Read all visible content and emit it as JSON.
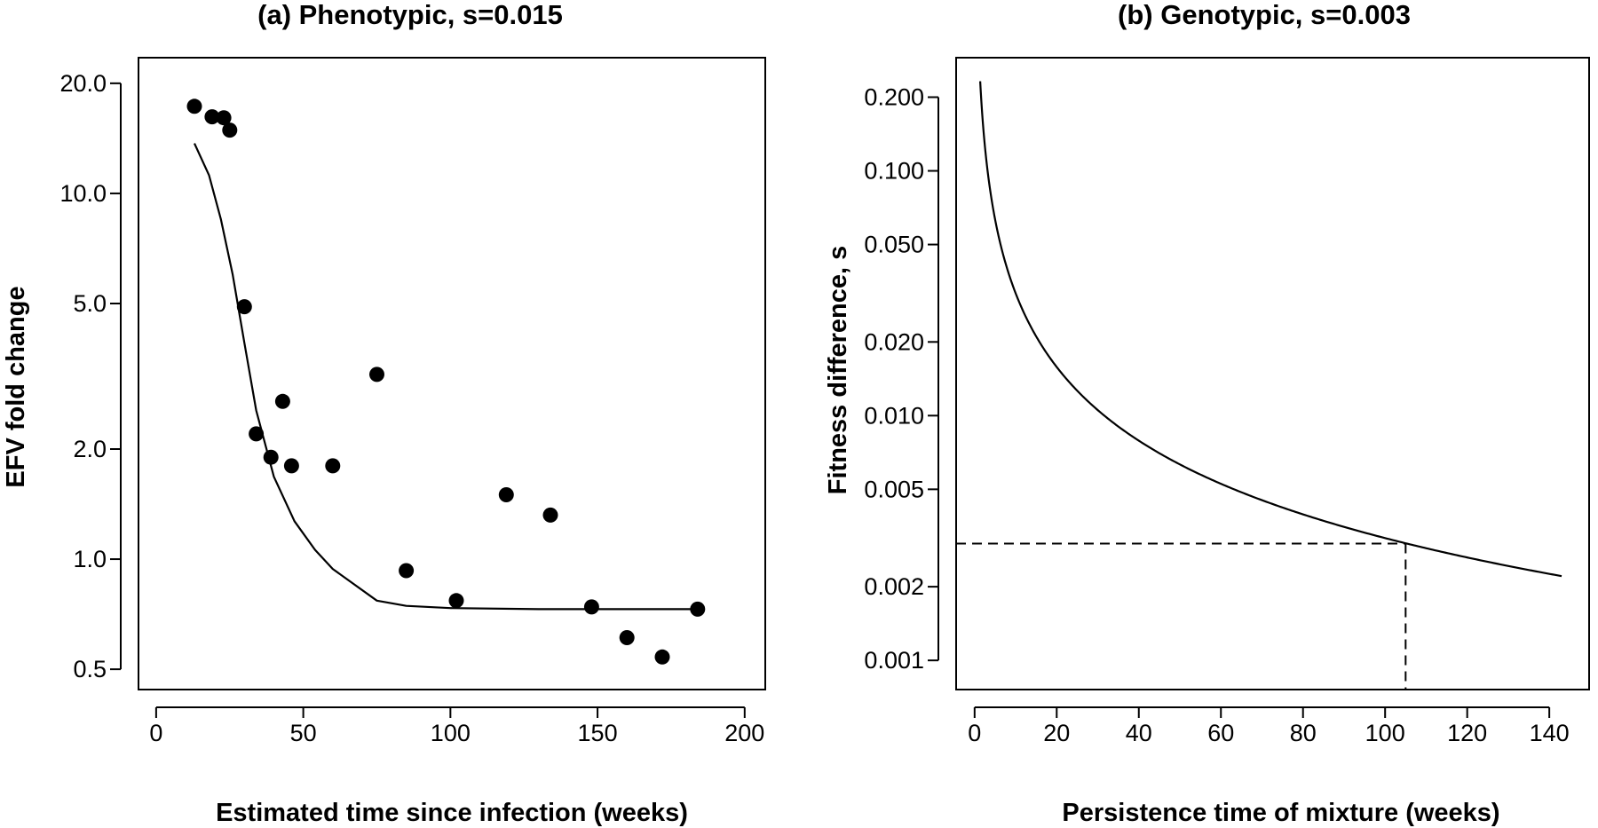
{
  "chart_data": [
    {
      "type": "scatter",
      "title": "(a) Phenotypic, s=0.015",
      "xlabel": "Estimated time since infection (weeks)",
      "ylabel": "EFV fold change",
      "xlim": [
        -6,
        207
      ],
      "ylim": [
        0.44,
        23.5
      ],
      "yscale": "log",
      "xticks": [
        0,
        50,
        100,
        150,
        200
      ],
      "xtick_labels": [
        "0",
        "50",
        "100",
        "150",
        "200"
      ],
      "yticks": [
        0.5,
        1.0,
        2.0,
        5.0,
        10.0,
        20.0
      ],
      "ytick_labels": [
        "0.5",
        "1.0",
        "2.0",
        "5.0",
        "10.0",
        "20.0"
      ],
      "grid": false,
      "series": [
        {
          "kind": "points",
          "x": [
            13,
            19,
            23,
            25,
            30,
            34,
            39,
            43,
            46,
            60,
            75,
            85,
            102,
            119,
            134,
            148,
            160,
            172,
            184
          ],
          "y": [
            17.3,
            16.2,
            16.1,
            14.9,
            4.9,
            2.2,
            1.9,
            2.7,
            1.8,
            1.8,
            3.2,
            0.93,
            0.77,
            1.5,
            1.32,
            0.74,
            0.61,
            0.54,
            0.73
          ]
        },
        {
          "kind": "line",
          "x": [
            13,
            18,
            22,
            26,
            30,
            34,
            40,
            47,
            54,
            60,
            75,
            85,
            100,
            130,
            160,
            185
          ],
          "y": [
            13.7,
            11.2,
            8.5,
            6.0,
            3.9,
            2.55,
            1.68,
            1.27,
            1.06,
            0.94,
            0.77,
            0.745,
            0.735,
            0.73,
            0.73,
            0.73
          ]
        }
      ]
    },
    {
      "type": "line",
      "title": "(b) Genotypic, s=0.003",
      "xlabel": "Persistence time of mixture (weeks)",
      "ylabel": "Fitness difference, s",
      "xlim": [
        -4.5,
        149.7
      ],
      "ylim": [
        0.00076,
        0.29
      ],
      "yscale": "log",
      "xticks": [
        0,
        20,
        40,
        60,
        80,
        100,
        120,
        140
      ],
      "xtick_labels": [
        "0",
        "20",
        "40",
        "60",
        "80",
        "100",
        "120",
        "140"
      ],
      "yticks": [
        0.001,
        0.002,
        0.005,
        0.01,
        0.02,
        0.05,
        0.1,
        0.2
      ],
      "ytick_labels": [
        "0.001",
        "0.002",
        "0.005",
        "0.010",
        "0.020",
        "0.050",
        "0.100",
        "0.200"
      ],
      "grid": false,
      "series": [
        {
          "kind": "curve",
          "x_start": 1.36,
          "x_end": 143,
          "y_times_x": 0.316
        },
        {
          "kind": "reference",
          "y": 0.003,
          "x": 105
        }
      ]
    }
  ]
}
